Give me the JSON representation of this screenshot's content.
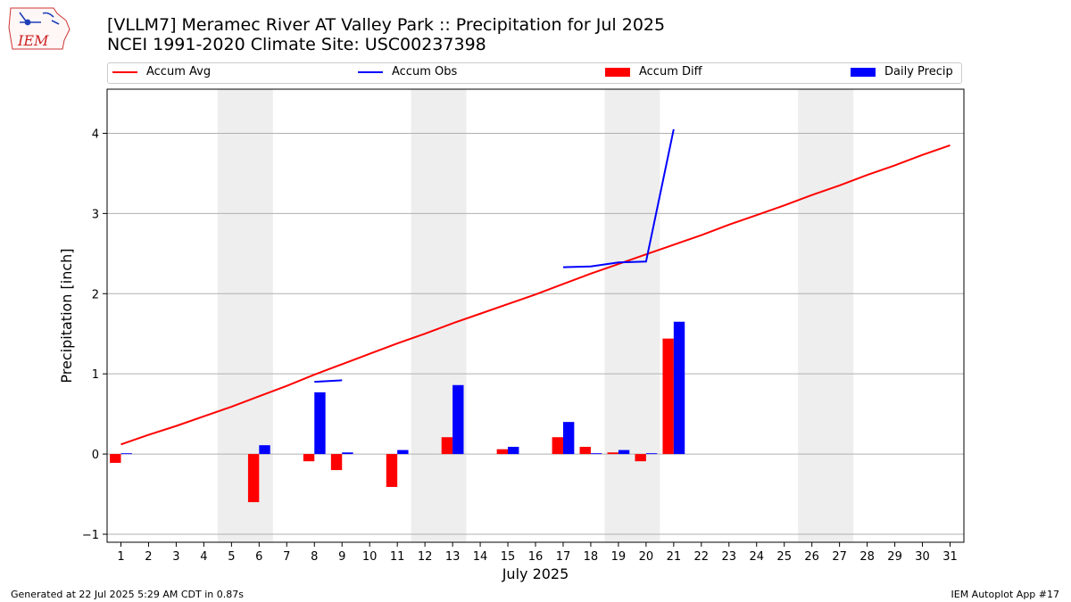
{
  "header": {
    "logo_text": "IEM",
    "title_line1": "[VLLM7] Meramec River  AT Valley Park :: Precipitation for Jul 2025",
    "title_line2": "NCEI 1991-2020 Climate Site: USC00237398"
  },
  "footer": {
    "generated": "Generated at 22 Jul 2025 5:29 AM CDT in 0.87s",
    "app": "IEM Autoplot App #17"
  },
  "colors": {
    "accum_avg": "#ff0000",
    "accum_obs": "#0000ff",
    "accum_diff": "#ff0000",
    "daily_precip": "#0000ff",
    "weekend_shade": "#eeeeee",
    "grid": "#b0b0b0"
  },
  "chart_data": {
    "type": "bar",
    "xlabel": "July 2025",
    "ylabel": "Precipitation [inch]",
    "ylim": [
      -1.1,
      4.55
    ],
    "yticks": [
      -1,
      0,
      1,
      2,
      3,
      4
    ],
    "grid": "y-major",
    "legend_placement": "top",
    "legend": [
      "Accum Avg",
      "Accum Obs",
      "Accum Diff",
      "Daily Precip"
    ],
    "days": [
      1,
      2,
      3,
      4,
      5,
      6,
      7,
      8,
      9,
      10,
      11,
      12,
      13,
      14,
      15,
      16,
      17,
      18,
      19,
      20,
      21,
      22,
      23,
      24,
      25,
      26,
      27,
      28,
      29,
      30,
      31
    ],
    "weekend_shading": [
      [
        5,
        6
      ],
      [
        12,
        13
      ],
      [
        19,
        20
      ],
      [
        26,
        27
      ]
    ],
    "series": [
      {
        "name": "Accum Avg",
        "type": "line",
        "x": [
          1,
          2,
          3,
          4,
          5,
          6,
          7,
          8,
          9,
          10,
          11,
          12,
          13,
          14,
          15,
          16,
          17,
          18,
          19,
          20,
          21,
          22,
          23,
          24,
          25,
          26,
          27,
          28,
          29,
          30,
          31
        ],
        "values": [
          0.12,
          0.24,
          0.35,
          0.47,
          0.59,
          0.72,
          0.85,
          0.99,
          1.12,
          1.25,
          1.38,
          1.5,
          1.63,
          1.75,
          1.87,
          1.99,
          2.12,
          2.25,
          2.37,
          2.49,
          2.61,
          2.73,
          2.86,
          2.98,
          3.1,
          3.23,
          3.35,
          3.48,
          3.6,
          3.73,
          3.85
        ]
      },
      {
        "name": "Accum Obs",
        "type": "line",
        "segments": [
          {
            "x": [
              8,
              9
            ],
            "values": [
              0.9,
              0.92
            ]
          },
          {
            "x": [
              17,
              18,
              19,
              20,
              21
            ],
            "values": [
              2.33,
              2.34,
              2.39,
              2.4,
              4.05
            ]
          }
        ]
      },
      {
        "name": "Accum Diff",
        "type": "bar",
        "x": [
          1,
          6,
          8,
          9,
          11,
          13,
          15,
          17,
          18,
          19,
          20,
          21
        ],
        "values": [
          -0.11,
          -0.6,
          -0.09,
          -0.2,
          -0.41,
          0.21,
          0.06,
          0.21,
          0.09,
          0.02,
          -0.09,
          1.44
        ]
      },
      {
        "name": "Daily Precip",
        "type": "bar",
        "x": [
          1,
          6,
          8,
          9,
          11,
          13,
          15,
          17,
          18,
          19,
          20,
          21
        ],
        "values": [
          0.01,
          0.11,
          0.77,
          0.02,
          0.05,
          0.86,
          0.09,
          0.4,
          0.01,
          0.05,
          0.01,
          1.65
        ]
      }
    ]
  }
}
